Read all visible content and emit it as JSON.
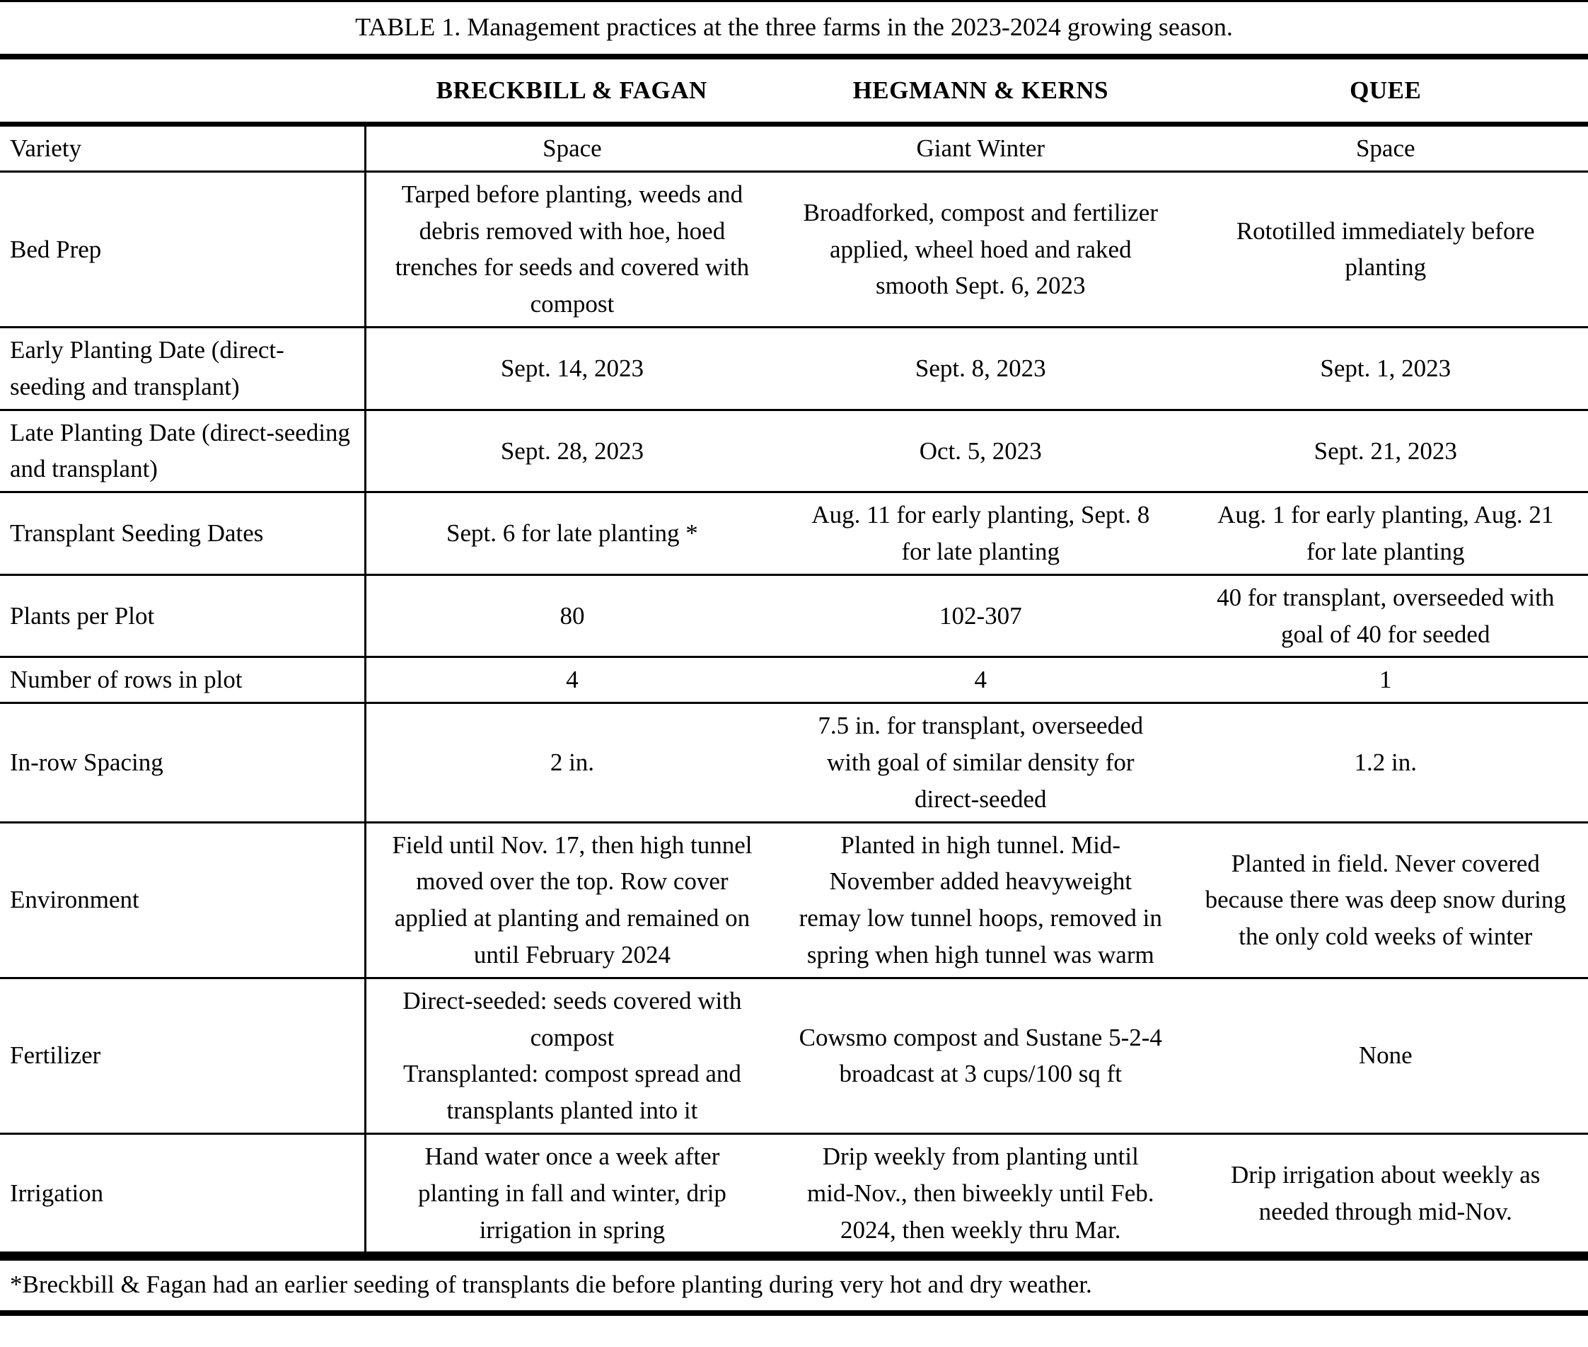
{
  "table": {
    "title": "TABLE 1. Management practices at the three farms in the 2023-2024 growing season.",
    "columns": [
      "",
      "BRECKBILL & FAGAN",
      "HEGMANN & KERNS",
      "QUEE"
    ],
    "rows": [
      {
        "label": "Variety",
        "cells": [
          "Space",
          "Giant Winter",
          "Space"
        ]
      },
      {
        "label": "Bed Prep",
        "cells": [
          "Tarped before planting, weeds and debris removed with hoe, hoed trenches for seeds and covered with compost",
          "Broadforked, compost and fertilizer applied, wheel hoed and raked smooth Sept. 6, 2023",
          "Rototilled immediately before planting"
        ]
      },
      {
        "label": "Early Planting Date (direct-seeding and transplant)",
        "cells": [
          "Sept. 14, 2023",
          "Sept. 8, 2023",
          "Sept. 1, 2023"
        ]
      },
      {
        "label": "Late Planting Date (direct-seeding and transplant)",
        "cells": [
          "Sept. 28, 2023",
          "Oct. 5, 2023",
          "Sept. 21, 2023"
        ]
      },
      {
        "label": "Transplant Seeding Dates",
        "cells": [
          "Sept. 6 for late planting *",
          "Aug. 11 for early planting, Sept. 8 for late planting",
          "Aug. 1 for early planting, Aug. 21 for late planting"
        ]
      },
      {
        "label": "Plants per Plot",
        "cells": [
          "80",
          "102-307",
          "40 for transplant, overseeded with goal of 40 for seeded"
        ]
      },
      {
        "label": "Number of rows in plot",
        "cells": [
          "4",
          "4",
          "1"
        ]
      },
      {
        "label": "In-row Spacing",
        "cells": [
          "2 in.",
          "7.5 in. for transplant, overseeded with goal of similar density for direct-seeded",
          "1.2 in."
        ]
      },
      {
        "label": "Environment",
        "cells": [
          "Field until Nov. 17, then high tunnel moved over the top. Row cover applied at planting and remained on until February 2024",
          "Planted in high tunnel. Mid-November added heavyweight remay low tunnel hoops, removed in spring when high tunnel was warm",
          "Planted in field. Never covered because there was deep snow during the only cold weeks of winter"
        ]
      },
      {
        "label": "Fertilizer",
        "cells": [
          "Direct-seeded: seeds covered with compost\nTransplanted: compost spread and transplants planted into it",
          "Cowsmo compost and Sustane 5-2-4 broadcast at 3 cups/100 sq ft",
          "None"
        ]
      },
      {
        "label": "Irrigation",
        "cells": [
          "Hand water once a week after planting in fall and winter, drip irrigation in spring",
          "Drip weekly from planting until mid-Nov., then biweekly until Feb. 2024, then weekly thru Mar.",
          "Drip irrigation about weekly as needed through mid-Nov."
        ]
      }
    ],
    "footnote": "*Breckbill & Fagan had an earlier seeding of transplants die before planting during very hot and dry weather.",
    "colors": {
      "text": "#000000",
      "background": "#ffffff",
      "rule": "#000000"
    }
  }
}
